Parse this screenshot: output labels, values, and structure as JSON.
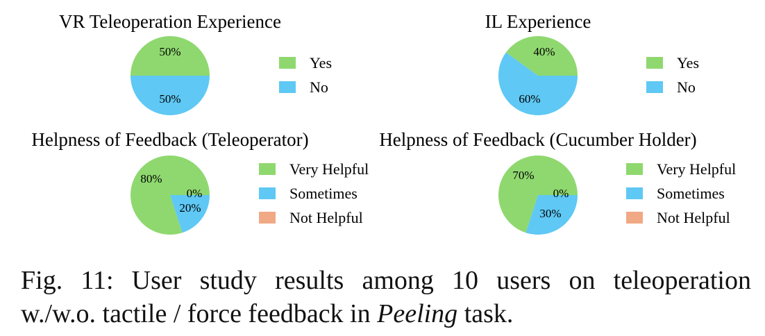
{
  "chart_data": [
    {
      "type": "pie",
      "title": "VR Teleoperation Experience",
      "categories": [
        "Yes",
        "No"
      ],
      "values": [
        50,
        50
      ],
      "labels": [
        "50%",
        "50%"
      ],
      "colors": [
        "#8fd86f",
        "#5fc8f4"
      ],
      "legend": [
        "Yes",
        "No"
      ]
    },
    {
      "type": "pie",
      "title": "IL Experience",
      "categories": [
        "Yes",
        "No"
      ],
      "values": [
        40,
        60
      ],
      "labels": [
        "40%",
        "60%"
      ],
      "colors": [
        "#8fd86f",
        "#5fc8f4"
      ],
      "legend": [
        "Yes",
        "No"
      ]
    },
    {
      "type": "pie",
      "title": "Helpness of Feedback (Teleoperator)",
      "categories": [
        "Very Helpful",
        "Sometimes",
        "Not Helpful"
      ],
      "values": [
        80,
        20,
        0
      ],
      "labels": [
        "80%",
        "20%",
        "0%"
      ],
      "colors": [
        "#8fd86f",
        "#5fc8f4",
        "#f1a985"
      ],
      "legend": [
        "Very Helpful",
        "Sometimes",
        "Not Helpful"
      ]
    },
    {
      "type": "pie",
      "title": "Helpness of Feedback (Cucumber Holder)",
      "categories": [
        "Very Helpful",
        "Sometimes",
        "Not Helpful"
      ],
      "values": [
        70,
        30,
        0
      ],
      "labels": [
        "70%",
        "30%",
        "0%"
      ],
      "colors": [
        "#8fd86f",
        "#5fc8f4",
        "#f1a985"
      ],
      "legend": [
        "Very Helpful",
        "Sometimes",
        "Not Helpful"
      ]
    }
  ],
  "caption": {
    "line1": "Fig. 11: User study results among 10 users on teleoperation",
    "line2_pre": "w./w.o. tactile / force feedback in ",
    "line2_em": "Peeling",
    "line2_post": " task."
  }
}
